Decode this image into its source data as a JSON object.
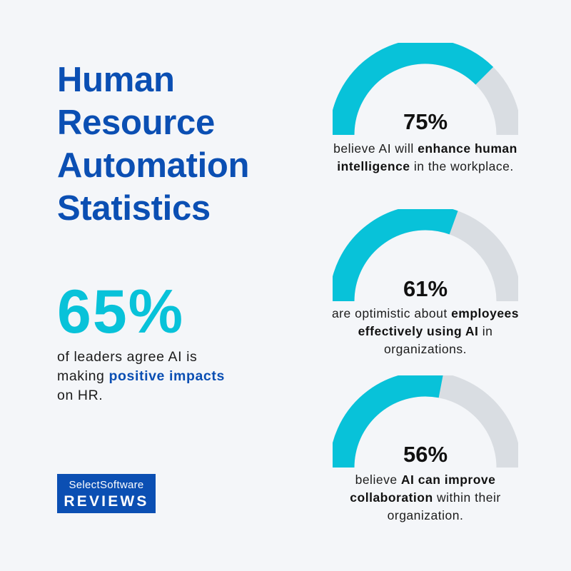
{
  "title": {
    "lines": [
      "Human",
      "Resource",
      "Automation",
      "Statistics"
    ]
  },
  "headline_stat": {
    "value": "65%",
    "desc_pre": "of leaders agree AI is making ",
    "desc_bold": "positive impacts",
    "desc_post": " on HR."
  },
  "logo": {
    "line1": "SelectSoftware",
    "line2": "REVIEWS"
  },
  "colors": {
    "brand_blue": "#0b4fb3",
    "accent_cyan": "#08c2d9",
    "track_gray": "#d9dde2",
    "background": "#f4f6f9"
  },
  "gauges": [
    {
      "value": "75%",
      "pre": "believe AI will ",
      "bold": "enhance human intelligence",
      "post": " in the workplace."
    },
    {
      "value": "61%",
      "pre": "are optimistic about ",
      "bold": "employees effectively using AI",
      "post": " in organizations."
    },
    {
      "value": "56%",
      "pre": "believe ",
      "bold": "AI can improve collaboration",
      "post": " within their organization."
    }
  ],
  "chart_data": {
    "type": "gauge",
    "title": "Human Resource Automation Statistics",
    "categories": [
      "of leaders agree AI is making positive impacts on HR",
      "believe AI will enhance human intelligence in the workplace",
      "are optimistic about employees effectively using AI in organizations",
      "believe AI can improve collaboration within their organization"
    ],
    "values": [
      65,
      75,
      61,
      56
    ],
    "unit": "%",
    "range": [
      0,
      100
    ]
  }
}
